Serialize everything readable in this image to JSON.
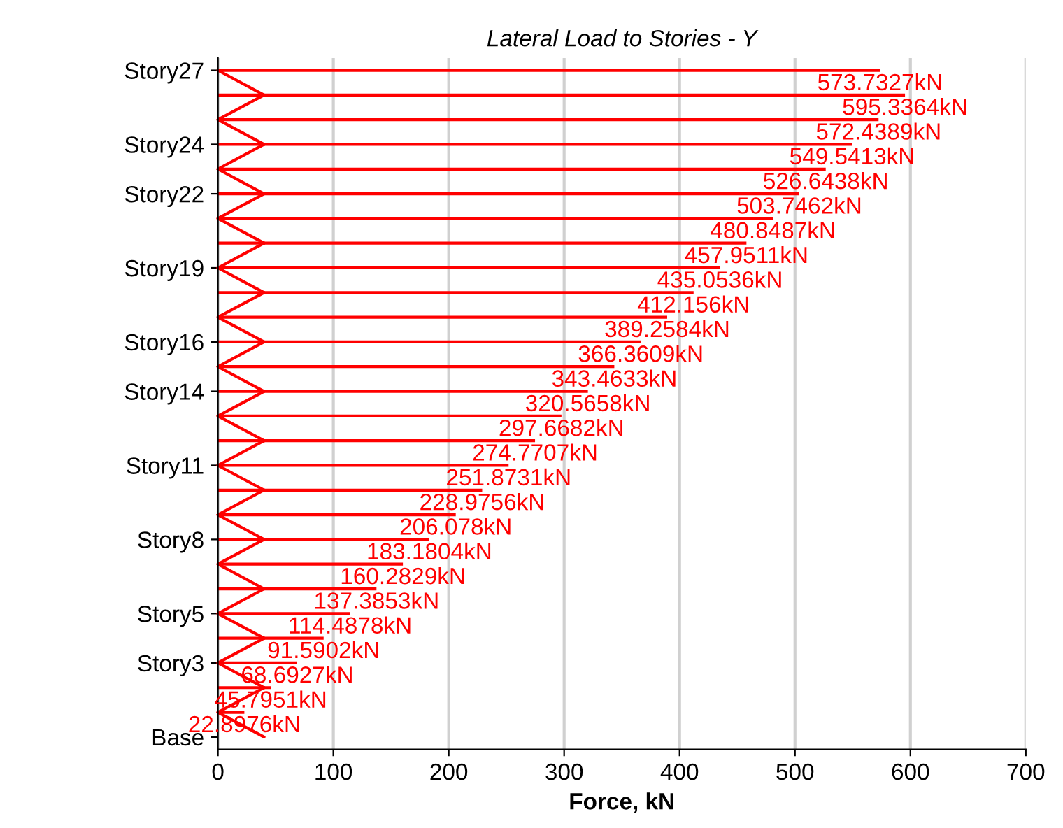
{
  "chart_data": {
    "type": "bar",
    "orientation": "horizontal",
    "title": "Lateral Load to Stories - Y",
    "xlabel": "Force, kN",
    "categories": [
      "Story27",
      null,
      null,
      "Story24",
      null,
      "Story22",
      null,
      null,
      "Story19",
      null,
      null,
      "Story16",
      null,
      "Story14",
      null,
      null,
      "Story11",
      null,
      null,
      "Story8",
      null,
      null,
      "Story5",
      null,
      "Story3",
      null,
      null,
      "Base"
    ],
    "series": [
      {
        "color": "#ff0000",
        "values": [
          573.7327,
          595.3364,
          572.4389,
          549.5413,
          526.6438,
          503.7462,
          480.8487,
          457.9511,
          435.0536,
          412.156,
          389.2584,
          366.3609,
          343.4633,
          320.5658,
          297.6682,
          274.7707,
          251.8731,
          228.9756,
          206.078,
          183.1804,
          160.2829,
          137.3853,
          114.4878,
          91.5902,
          68.6927,
          45.7951,
          22.8976,
          null
        ],
        "value_labels": [
          "573.7327kN",
          "595.3364kN",
          "572.4389kN",
          "549.5413kN",
          "526.6438kN",
          "503.7462kN",
          "480.8487kN",
          "457.9511kN",
          "435.0536kN",
          "412.156kN",
          "389.2584kN",
          "366.3609kN",
          "343.4633kN",
          "320.5658kN",
          "297.6682kN",
          "274.7707kN",
          "251.8731kN",
          "228.9756kN",
          "206.078kN",
          "183.1804kN",
          "160.2829kN",
          "137.3853kN",
          "114.4878kN",
          "91.5902kN",
          "68.6927kN",
          "45.7951kN",
          "22.8976kN",
          null
        ]
      }
    ],
    "xlim": [
      0,
      700
    ],
    "xticks": [
      0,
      100,
      200,
      300,
      400,
      500,
      600,
      700
    ],
    "grid": "x"
  }
}
